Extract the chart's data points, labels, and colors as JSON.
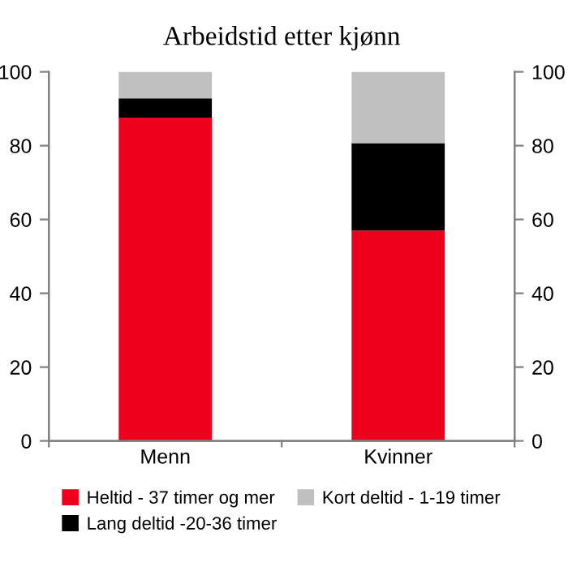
{
  "chart_data": {
    "type": "bar",
    "title": "Arbeidstid etter kjønn",
    "categories": [
      "Menn",
      "Kvinner"
    ],
    "stacked": true,
    "series": [
      {
        "name": "Heltid - 37 timer og mer",
        "color": "#ee001c",
        "values": [
          87.6,
          57.0
        ]
      },
      {
        "name": "Lang deltid -20-36 timer",
        "color": "#000000",
        "values": [
          5.2,
          23.7
        ]
      },
      {
        "name": "Kort deltid - 1-19 timer",
        "color": "#c0c0c0",
        "values": [
          7.2,
          19.3
        ]
      }
    ],
    "ylim": [
      0,
      100
    ],
    "yticks": [
      0,
      20,
      40,
      60,
      80,
      100
    ],
    "y2lim": [
      0,
      100
    ],
    "y2ticks": [
      0,
      20,
      40,
      60,
      80,
      100
    ],
    "grid": false,
    "legend": "bottom"
  }
}
